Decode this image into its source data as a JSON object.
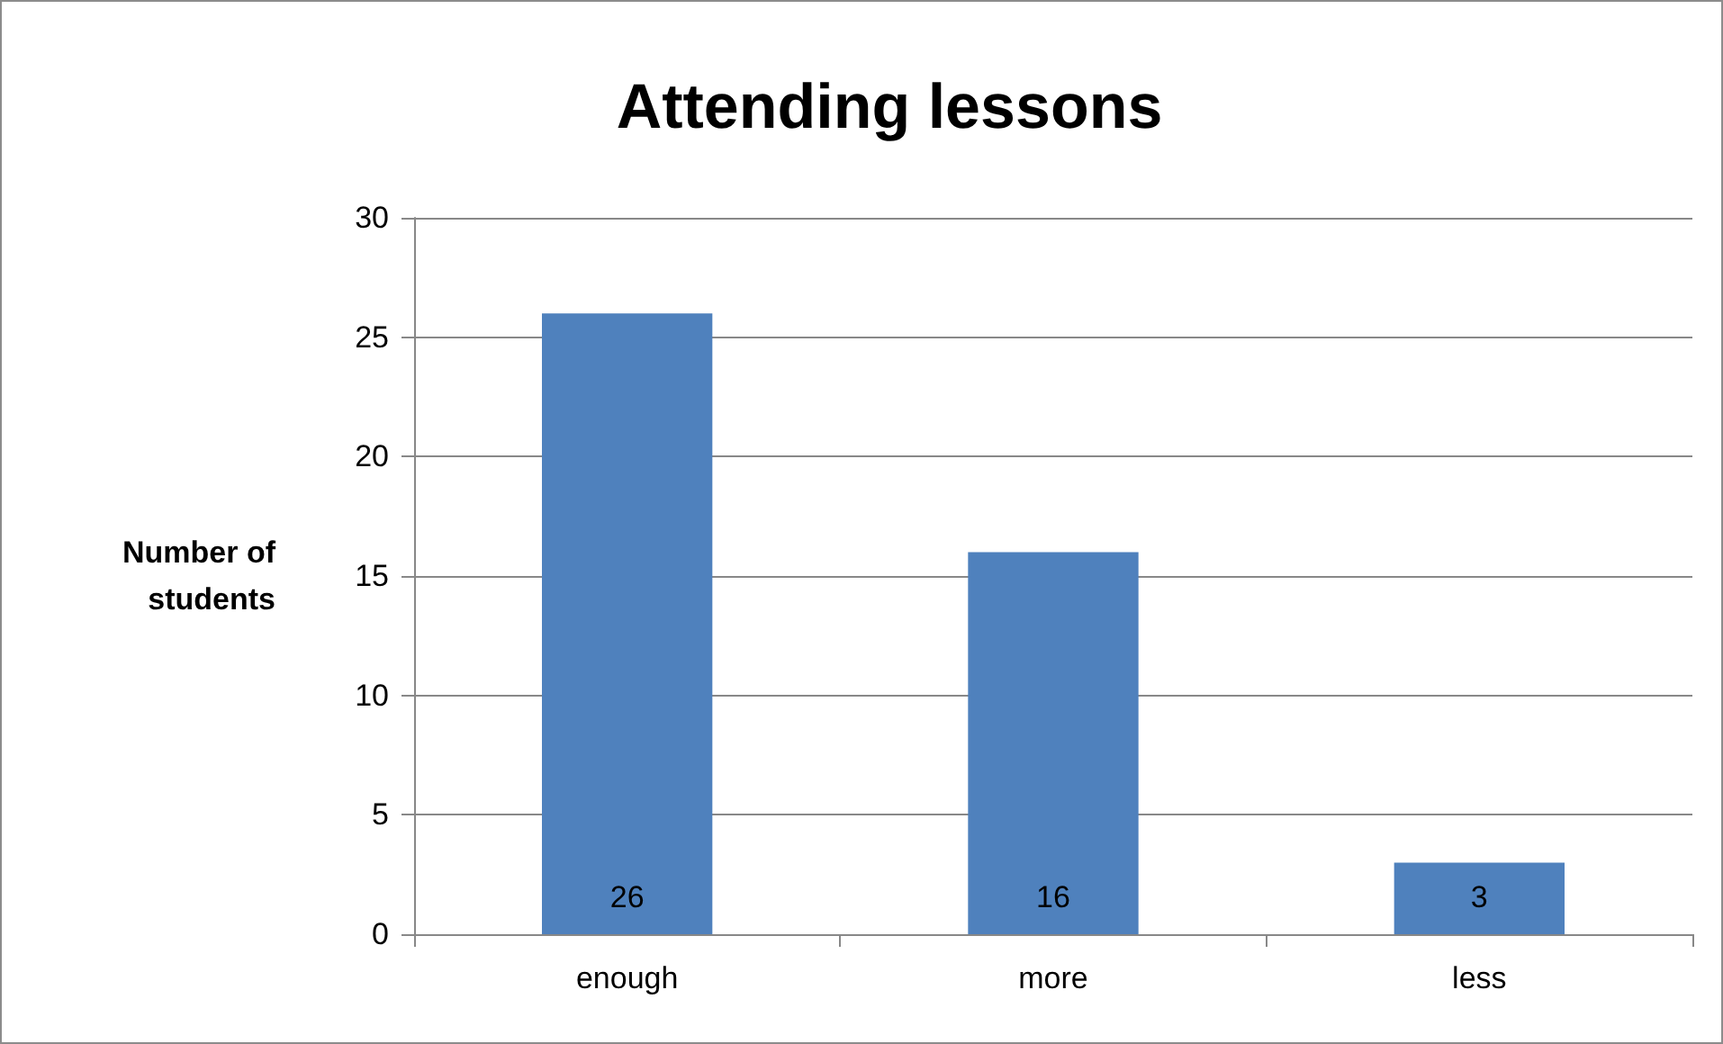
{
  "chart_data": {
    "type": "bar",
    "title": "Attending lessons",
    "ylabel": "Number of students",
    "categories": [
      "enough",
      "more",
      "less"
    ],
    "values": [
      26,
      16,
      3
    ],
    "color": "#4f81bd",
    "ylim": [
      0,
      30
    ],
    "yticks": [
      0,
      5,
      10,
      15,
      20,
      25,
      30
    ],
    "grid": "y",
    "data_labels": true
  }
}
